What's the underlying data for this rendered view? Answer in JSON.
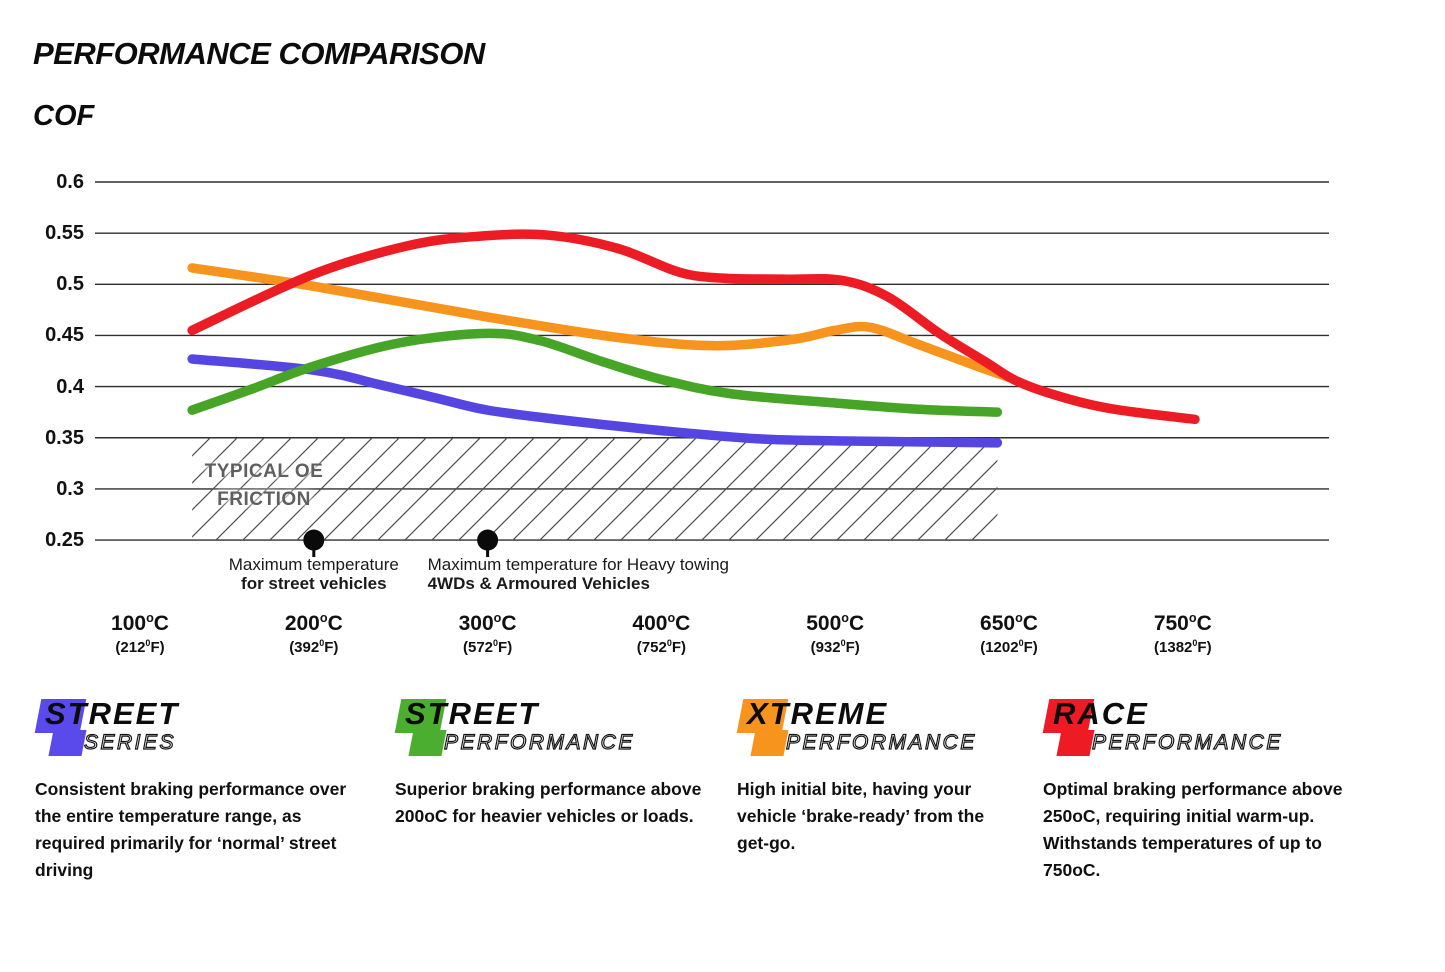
{
  "page": {
    "title": "PERFORMANCE COMPARISON",
    "y_axis_title": "COF"
  },
  "chart_data": {
    "type": "line",
    "title": "PERFORMANCE COMPARISON",
    "ylabel": "COF",
    "ylim": [
      0.25,
      0.6
    ],
    "grid": "horizontal",
    "legend_position": "bottom",
    "y_ticks": [
      "0.6",
      "0.55",
      "0.5",
      "0.45",
      "0.4",
      "0.35",
      "0.3",
      "0.25"
    ],
    "x_ticks": [
      {
        "celsius": "100",
        "fahrenheit": "212"
      },
      {
        "celsius": "200",
        "fahrenheit": "392"
      },
      {
        "celsius": "300",
        "fahrenheit": "572"
      },
      {
        "celsius": "400",
        "fahrenheit": "752"
      },
      {
        "celsius": "500",
        "fahrenheit": "932"
      },
      {
        "celsius": "650",
        "fahrenheit": "1202"
      },
      {
        "celsius": "750",
        "fahrenheit": "1382"
      }
    ],
    "x_axis_unit_note": "temperatures in oC with oF equivalents",
    "series": [
      {
        "name": "Street Series",
        "color": "#5546E1",
        "points": [
          [
            130,
            0.427
          ],
          [
            200,
            0.416
          ],
          [
            240,
            0.401
          ],
          [
            270,
            0.389
          ],
          [
            300,
            0.377
          ],
          [
            345,
            0.367
          ],
          [
            400,
            0.357
          ],
          [
            455,
            0.349
          ],
          [
            500,
            0.347
          ],
          [
            570,
            0.346
          ],
          [
            640,
            0.345
          ]
        ]
      },
      {
        "name": "Street Performance",
        "color": "#46A426",
        "points": [
          [
            130,
            0.377
          ],
          [
            165,
            0.398
          ],
          [
            200,
            0.42
          ],
          [
            250,
            0.443
          ],
          [
            300,
            0.452
          ],
          [
            330,
            0.445
          ],
          [
            365,
            0.425
          ],
          [
            400,
            0.407
          ],
          [
            440,
            0.393
          ],
          [
            500,
            0.384
          ],
          [
            570,
            0.378
          ],
          [
            640,
            0.375
          ]
        ]
      },
      {
        "name": "Xtreme Performance",
        "color": "#F7941D",
        "points": [
          [
            130,
            0.516
          ],
          [
            200,
            0.498
          ],
          [
            300,
            0.468
          ],
          [
            375,
            0.448
          ],
          [
            430,
            0.44
          ],
          [
            475,
            0.446
          ],
          [
            500,
            0.455
          ],
          [
            530,
            0.458
          ],
          [
            570,
            0.442
          ],
          [
            620,
            0.421
          ],
          [
            650,
            0.409
          ]
        ]
      },
      {
        "name": "Race Performance",
        "color": "#EC1C24",
        "points": [
          [
            130,
            0.455
          ],
          [
            200,
            0.51
          ],
          [
            255,
            0.538
          ],
          [
            295,
            0.547
          ],
          [
            335,
            0.548
          ],
          [
            375,
            0.535
          ],
          [
            410,
            0.512
          ],
          [
            435,
            0.506
          ],
          [
            470,
            0.505
          ],
          [
            505,
            0.504
          ],
          [
            545,
            0.488
          ],
          [
            590,
            0.452
          ],
          [
            630,
            0.424
          ],
          [
            655,
            0.405
          ],
          [
            680,
            0.39
          ],
          [
            710,
            0.378
          ],
          [
            757,
            0.368
          ]
        ]
      }
    ],
    "oe_band": {
      "label_line1": "TYPICAL OE",
      "label_line2": "FRICTION",
      "cof_from": 0.25,
      "cof_to": 0.35,
      "t_from": 130,
      "t_to": 640
    },
    "markers": [
      {
        "t": 200,
        "cof": 0.25,
        "line1": "Maximum temperature",
        "line2": "for street vehicles",
        "align": "center"
      },
      {
        "t": 300,
        "cof": 0.25,
        "line1": "Maximum temperature for Heavy towing",
        "line2": "4WDs & Armoured Vehicles",
        "align": "left"
      }
    ]
  },
  "legend": [
    {
      "word1": "STREET",
      "word2": "SERIES",
      "color": "#5A4AEC",
      "description": "Consistent braking performance over the entire temperature range, as required primarily for ‘normal’ street driving"
    },
    {
      "word1": "STREET",
      "word2": "PERFORMANCE",
      "color": "#4CAE30",
      "description": "Superior braking performance above 200oC for heavier vehicles or loads."
    },
    {
      "word1": "XTREME",
      "word2": "PERFORMANCE",
      "color": "#F7941D",
      "description": "High initial bite, having your vehicle ‘brake-ready’ from the get-go."
    },
    {
      "word1": "RACE",
      "word2": "PERFORMANCE",
      "color": "#ED1C24",
      "description": "Optimal braking performance above 250oC, requiring initial warm-up. Withstands temperatures of up to 750oC."
    }
  ]
}
